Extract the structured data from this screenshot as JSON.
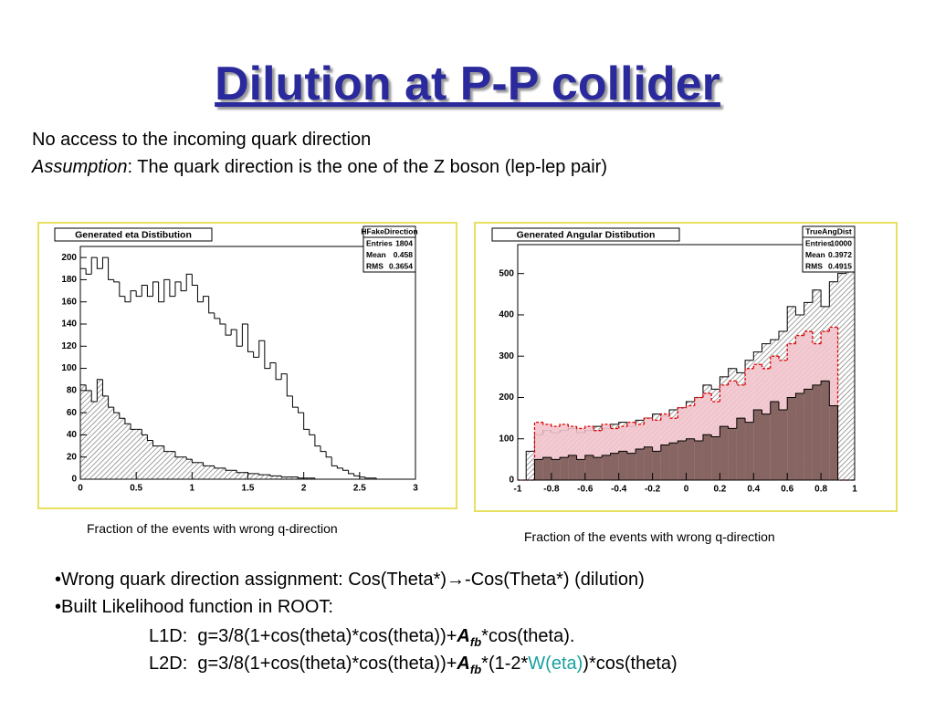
{
  "title": "Dilution at P-P collider",
  "intro": {
    "line1": "No access to the incoming quark direction",
    "line2_italic": "Assumption",
    "line2_rest": ": The quark direction is the one of the Z boson (lep-lep pair)"
  },
  "chart_data": [
    {
      "type": "histogram",
      "title": "Generated eta Distibution",
      "stats": {
        "name": "HFakeDirection",
        "rows": [
          {
            "label": "Entries",
            "value": 1804
          },
          {
            "label": "Mean",
            "value": 0.458
          },
          {
            "label": "RMS",
            "value": 0.3654
          }
        ]
      },
      "caption": "Fraction of the events with wrong q-direction",
      "bins": [
        0,
        0.05,
        0.1,
        0.15,
        0.2,
        0.25,
        0.3,
        0.35,
        0.4,
        0.45,
        0.5,
        0.55,
        0.6,
        0.65,
        0.7,
        0.75,
        0.8,
        0.85,
        0.9,
        0.95,
        1,
        1.05,
        1.1,
        1.15,
        1.2,
        1.25,
        1.3,
        1.35,
        1.4,
        1.45,
        1.5,
        1.55,
        1.6,
        1.65,
        1.7,
        1.75,
        1.8,
        1.85,
        1.9,
        1.95,
        2,
        2.05,
        2.1,
        2.15,
        2.2,
        2.25,
        2.3,
        2.35,
        2.4,
        2.45,
        2.5,
        2.55,
        2.6,
        2.65,
        2.7,
        2.75,
        2.8,
        2.85,
        2.9,
        2.95,
        3
      ],
      "series": [
        {
          "color": "none",
          "edge": "#000000",
          "values": [
            190,
            185,
            200,
            190,
            200,
            180,
            178,
            165,
            160,
            170,
            165,
            175,
            165,
            178,
            160,
            180,
            165,
            178,
            170,
            185,
            175,
            160,
            165,
            150,
            145,
            140,
            130,
            135,
            120,
            140,
            115,
            110,
            125,
            100,
            105,
            90,
            95,
            75,
            65,
            60,
            45,
            40,
            30,
            25,
            20,
            12,
            10,
            8,
            5,
            3,
            2,
            1,
            1,
            0,
            0,
            0,
            0,
            0,
            0,
            0
          ]
        },
        {
          "color": "#b0b0b0",
          "edge": "#000000",
          "hatch": true,
          "values": [
            85,
            80,
            70,
            90,
            75,
            65,
            60,
            55,
            50,
            45,
            45,
            40,
            35,
            30,
            30,
            25,
            25,
            20,
            20,
            18,
            15,
            15,
            12,
            12,
            10,
            10,
            8,
            8,
            6,
            6,
            5,
            5,
            4,
            4,
            3,
            3,
            2,
            2,
            2,
            1,
            1,
            1,
            0,
            0,
            0,
            0,
            0,
            0,
            0,
            0,
            0,
            0,
            0,
            0,
            0,
            0,
            0,
            0,
            0,
            0
          ]
        }
      ],
      "xlim": [
        0,
        3
      ],
      "xticks": [
        0,
        0.5,
        1,
        1.5,
        2,
        2.5,
        3
      ],
      "ylim": [
        0,
        210
      ],
      "yticks": [
        0,
        20,
        40,
        60,
        80,
        100,
        120,
        140,
        160,
        180,
        200
      ]
    },
    {
      "type": "histogram",
      "title": "Generated Angular Distibution",
      "stats": {
        "name": "TrueAngDist",
        "rows": [
          {
            "label": "Entries",
            "value": 10000
          },
          {
            "label": "Mean",
            "value": 0.3972
          },
          {
            "label": "RMS",
            "value": 0.4915
          }
        ]
      },
      "caption": "Fraction of the events with wrong q-direction",
      "bins": [
        -1,
        -0.95,
        -0.9,
        -0.85,
        -0.8,
        -0.75,
        -0.7,
        -0.65,
        -0.6,
        -0.55,
        -0.5,
        -0.45,
        -0.4,
        -0.35,
        -0.3,
        -0.25,
        -0.2,
        -0.15,
        -0.1,
        -0.05,
        0,
        0.05,
        0.1,
        0.15,
        0.2,
        0.25,
        0.3,
        0.35,
        0.4,
        0.45,
        0.5,
        0.55,
        0.6,
        0.65,
        0.7,
        0.75,
        0.8,
        0.85,
        0.9,
        0.95,
        1
      ],
      "series": [
        {
          "color": "#c8c8c8",
          "edge": "#000000",
          "hatch": true,
          "values": [
            0,
            70,
            110,
            120,
            115,
            120,
            125,
            115,
            120,
            130,
            125,
            135,
            140,
            130,
            145,
            150,
            160,
            155,
            170,
            175,
            190,
            200,
            230,
            220,
            250,
            270,
            260,
            290,
            310,
            330,
            340,
            360,
            420,
            400,
            430,
            460,
            420,
            480,
            500,
            520
          ]
        },
        {
          "color": "#f2c4cc",
          "edge": "#e00000",
          "dashed": true,
          "values": [
            0,
            0,
            140,
            135,
            130,
            135,
            130,
            125,
            130,
            120,
            135,
            125,
            130,
            140,
            135,
            150,
            145,
            160,
            150,
            175,
            180,
            200,
            210,
            190,
            230,
            240,
            230,
            270,
            280,
            270,
            300,
            290,
            330,
            350,
            360,
            330,
            360,
            370,
            0,
            0
          ]
        },
        {
          "color": "#7a5a55",
          "edge": "#000000",
          "values": [
            0,
            0,
            50,
            55,
            50,
            55,
            60,
            50,
            60,
            55,
            60,
            65,
            70,
            65,
            75,
            80,
            70,
            85,
            90,
            95,
            100,
            95,
            110,
            105,
            130,
            125,
            150,
            140,
            170,
            160,
            190,
            170,
            200,
            210,
            220,
            230,
            240,
            180,
            0,
            0
          ]
        }
      ],
      "xlim": [
        -1,
        1
      ],
      "xticks": [
        -1,
        -0.8,
        -0.6,
        -0.4,
        -0.2,
        0,
        0.2,
        0.4,
        0.6,
        0.8,
        1
      ],
      "ylim": [
        0,
        570
      ],
      "yticks": [
        0,
        100,
        200,
        300,
        400,
        500
      ]
    }
  ],
  "bullets": {
    "b1": "•Wrong quark direction assignment: Cos(Theta*)→-Cos(Theta*) (dilution)",
    "b2": "•Built Likelihood function in ROOT:"
  },
  "l1d": {
    "label": "L1D:",
    "p1": "g=3/8(1+cos(theta)*cos(theta))+",
    "a": "A",
    "sub": "fb",
    "p2": "*cos(theta)."
  },
  "l2d": {
    "label": "L2D:",
    "p1": "g=3/8(1+cos(theta)*cos(theta))+",
    "a": "A",
    "sub": "fb",
    "p2": "*(1-2*",
    "w": "W(eta)",
    "p3": ")*cos(theta)"
  }
}
